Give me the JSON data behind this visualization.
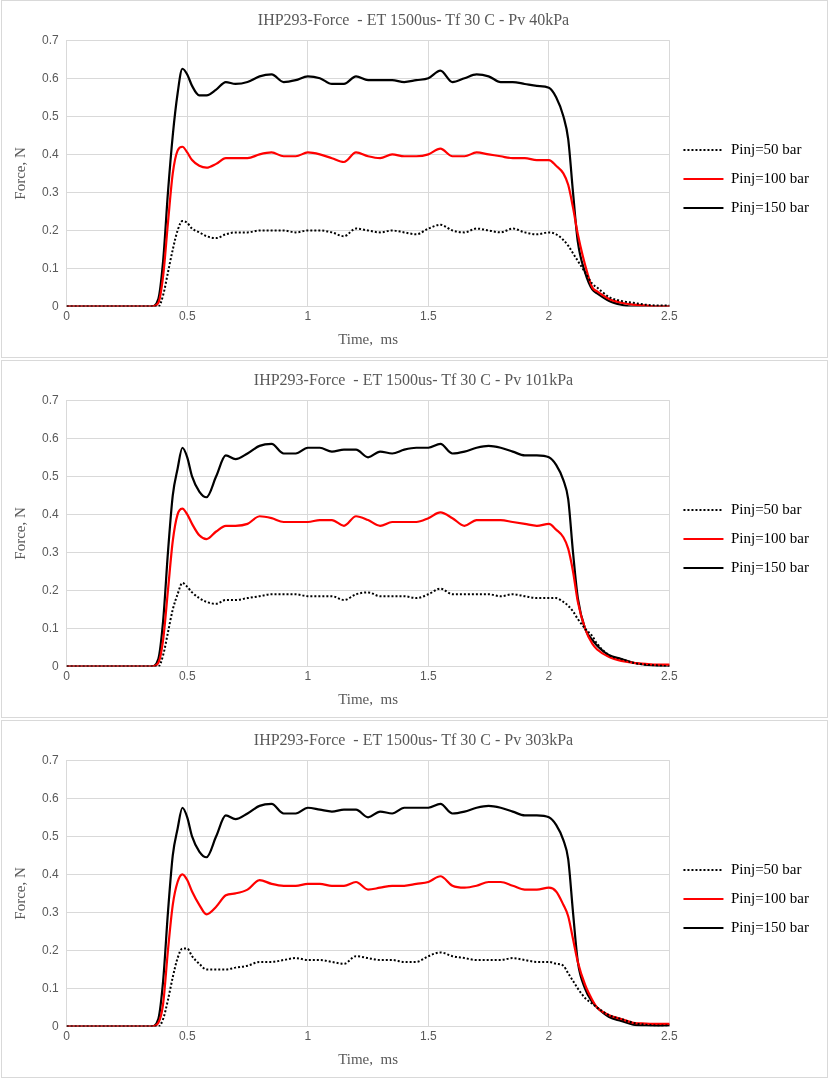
{
  "chart_data": [
    {
      "type": "line",
      "title": "IHP293-Force  - ET 1500us- Tf 30 C - Pv 40kPa",
      "xlabel": "Time,  ms",
      "ylabel": "Force, N",
      "xlim": [
        0,
        2.5
      ],
      "xticks": [
        0,
        0.5,
        1,
        1.5,
        2,
        2.5
      ],
      "ylim": [
        0,
        0.7
      ],
      "yticks": [
        0,
        0.1,
        0.2,
        0.3,
        0.4,
        0.5,
        0.6,
        0.7
      ],
      "grid": true,
      "legend": "right",
      "marker": "none",
      "x": [
        0,
        0.35,
        0.38,
        0.4,
        0.42,
        0.44,
        0.46,
        0.48,
        0.5,
        0.52,
        0.55,
        0.58,
        0.62,
        0.66,
        0.7,
        0.75,
        0.8,
        0.85,
        0.9,
        0.95,
        1.0,
        1.05,
        1.1,
        1.15,
        1.2,
        1.25,
        1.3,
        1.35,
        1.4,
        1.45,
        1.5,
        1.55,
        1.6,
        1.65,
        1.7,
        1.75,
        1.8,
        1.85,
        1.9,
        1.95,
        2.0,
        2.03,
        2.06,
        2.08,
        2.1,
        2.12,
        2.15,
        2.18,
        2.2,
        2.25,
        2.3,
        2.35,
        2.4,
        2.45,
        2.5
      ],
      "series": [
        {
          "name": "Pinj=50 bar",
          "color": "#000000",
          "line_style": "dotted",
          "values": [
            0,
            0,
            0,
            0.03,
            0.09,
            0.15,
            0.2,
            0.225,
            0.22,
            0.205,
            0.195,
            0.185,
            0.18,
            0.19,
            0.195,
            0.195,
            0.2,
            0.2,
            0.2,
            0.195,
            0.2,
            0.2,
            0.195,
            0.185,
            0.205,
            0.2,
            0.195,
            0.2,
            0.195,
            0.19,
            0.205,
            0.215,
            0.2,
            0.195,
            0.205,
            0.2,
            0.195,
            0.205,
            0.195,
            0.19,
            0.195,
            0.19,
            0.175,
            0.16,
            0.14,
            0.12,
            0.09,
            0.06,
            0.05,
            0.025,
            0.015,
            0.01,
            0.005,
            0.003,
            0.003
          ]
        },
        {
          "name": "Pinj=100 bar",
          "color": "#ff0000",
          "line_style": "solid",
          "values": [
            0,
            0,
            0.01,
            0.08,
            0.22,
            0.35,
            0.41,
            0.42,
            0.405,
            0.385,
            0.37,
            0.365,
            0.375,
            0.39,
            0.39,
            0.39,
            0.4,
            0.405,
            0.395,
            0.395,
            0.405,
            0.4,
            0.39,
            0.38,
            0.405,
            0.395,
            0.39,
            0.4,
            0.395,
            0.395,
            0.4,
            0.415,
            0.395,
            0.395,
            0.405,
            0.4,
            0.395,
            0.39,
            0.39,
            0.385,
            0.385,
            0.37,
            0.35,
            0.32,
            0.26,
            0.19,
            0.11,
            0.05,
            0.04,
            0.02,
            0.01,
            0.005,
            0.003,
            0,
            0
          ]
        },
        {
          "name": "Pinj=150 bar",
          "color": "#000000",
          "line_style": "solid",
          "values": [
            0,
            0,
            0.02,
            0.12,
            0.3,
            0.45,
            0.56,
            0.625,
            0.61,
            0.58,
            0.555,
            0.555,
            0.57,
            0.59,
            0.585,
            0.59,
            0.605,
            0.61,
            0.59,
            0.595,
            0.605,
            0.6,
            0.585,
            0.585,
            0.605,
            0.595,
            0.595,
            0.595,
            0.59,
            0.595,
            0.6,
            0.62,
            0.59,
            0.6,
            0.61,
            0.605,
            0.59,
            0.59,
            0.585,
            0.58,
            0.575,
            0.55,
            0.5,
            0.44,
            0.3,
            0.17,
            0.09,
            0.045,
            0.035,
            0.015,
            0.005,
            0,
            0,
            0,
            0
          ]
        }
      ]
    },
    {
      "type": "line",
      "title": "IHP293-Force  - ET 1500us- Tf 30 C - Pv 101kPa",
      "xlabel": "Time,  ms",
      "ylabel": "Force, N",
      "xlim": [
        0,
        2.5
      ],
      "xticks": [
        0,
        0.5,
        1,
        1.5,
        2,
        2.5
      ],
      "ylim": [
        0,
        0.7
      ],
      "yticks": [
        0,
        0.1,
        0.2,
        0.3,
        0.4,
        0.5,
        0.6,
        0.7
      ],
      "grid": true,
      "legend": "right",
      "marker": "none",
      "x": [
        0,
        0.35,
        0.38,
        0.4,
        0.42,
        0.44,
        0.46,
        0.48,
        0.5,
        0.52,
        0.55,
        0.58,
        0.62,
        0.66,
        0.7,
        0.75,
        0.8,
        0.85,
        0.9,
        0.95,
        1.0,
        1.05,
        1.1,
        1.15,
        1.2,
        1.25,
        1.3,
        1.35,
        1.4,
        1.45,
        1.5,
        1.55,
        1.6,
        1.65,
        1.7,
        1.75,
        1.8,
        1.85,
        1.9,
        1.95,
        2.0,
        2.03,
        2.06,
        2.08,
        2.1,
        2.12,
        2.15,
        2.18,
        2.2,
        2.25,
        2.3,
        2.35,
        2.4,
        2.45,
        2.5
      ],
      "series": [
        {
          "name": "Pinj=50 bar",
          "color": "#000000",
          "line_style": "dotted",
          "values": [
            0,
            0,
            0,
            0.03,
            0.09,
            0.15,
            0.19,
            0.22,
            0.21,
            0.195,
            0.18,
            0.17,
            0.165,
            0.175,
            0.175,
            0.18,
            0.185,
            0.19,
            0.19,
            0.19,
            0.185,
            0.185,
            0.185,
            0.175,
            0.19,
            0.195,
            0.185,
            0.185,
            0.185,
            0.18,
            0.19,
            0.205,
            0.19,
            0.19,
            0.19,
            0.19,
            0.185,
            0.19,
            0.185,
            0.18,
            0.18,
            0.18,
            0.17,
            0.16,
            0.145,
            0.125,
            0.1,
            0.08,
            0.06,
            0.03,
            0.02,
            0.01,
            0.005,
            0.003,
            0
          ]
        },
        {
          "name": "Pinj=100 bar",
          "color": "#ff0000",
          "line_style": "solid",
          "values": [
            0,
            0,
            0.01,
            0.07,
            0.2,
            0.33,
            0.4,
            0.415,
            0.4,
            0.375,
            0.345,
            0.335,
            0.355,
            0.37,
            0.37,
            0.375,
            0.395,
            0.39,
            0.38,
            0.38,
            0.38,
            0.385,
            0.385,
            0.37,
            0.395,
            0.385,
            0.37,
            0.38,
            0.38,
            0.38,
            0.39,
            0.405,
            0.39,
            0.37,
            0.385,
            0.385,
            0.385,
            0.38,
            0.375,
            0.37,
            0.375,
            0.36,
            0.34,
            0.31,
            0.25,
            0.17,
            0.1,
            0.06,
            0.045,
            0.025,
            0.015,
            0.01,
            0.007,
            0.005,
            0.005
          ]
        },
        {
          "name": "Pinj=150 bar",
          "color": "#000000",
          "line_style": "solid",
          "values": [
            0,
            0,
            0.02,
            0.12,
            0.3,
            0.45,
            0.52,
            0.575,
            0.55,
            0.5,
            0.46,
            0.445,
            0.5,
            0.555,
            0.545,
            0.56,
            0.58,
            0.585,
            0.56,
            0.56,
            0.575,
            0.575,
            0.565,
            0.57,
            0.57,
            0.55,
            0.565,
            0.56,
            0.57,
            0.575,
            0.575,
            0.585,
            0.56,
            0.565,
            0.575,
            0.58,
            0.575,
            0.565,
            0.555,
            0.555,
            0.55,
            0.53,
            0.49,
            0.44,
            0.3,
            0.18,
            0.1,
            0.07,
            0.055,
            0.03,
            0.02,
            0.01,
            0.005,
            0.002,
            0
          ]
        }
      ]
    },
    {
      "type": "line",
      "title": "IHP293-Force  - ET 1500us- Tf 30 C - Pv 303kPa",
      "xlabel": "Time,  ms",
      "ylabel": "Force, N",
      "xlim": [
        0,
        2.5
      ],
      "xticks": [
        0,
        0.5,
        1,
        1.5,
        2,
        2.5
      ],
      "ylim": [
        0,
        0.7
      ],
      "yticks": [
        0,
        0.1,
        0.2,
        0.3,
        0.4,
        0.5,
        0.6,
        0.7
      ],
      "grid": true,
      "legend": "right",
      "marker": "none",
      "x": [
        0,
        0.35,
        0.38,
        0.4,
        0.42,
        0.44,
        0.46,
        0.48,
        0.5,
        0.52,
        0.55,
        0.58,
        0.62,
        0.66,
        0.7,
        0.75,
        0.8,
        0.85,
        0.9,
        0.95,
        1.0,
        1.05,
        1.1,
        1.15,
        1.2,
        1.25,
        1.3,
        1.35,
        1.4,
        1.45,
        1.5,
        1.55,
        1.6,
        1.65,
        1.7,
        1.75,
        1.8,
        1.85,
        1.9,
        1.95,
        2.0,
        2.03,
        2.06,
        2.08,
        2.1,
        2.12,
        2.15,
        2.18,
        2.2,
        2.25,
        2.3,
        2.35,
        2.4,
        2.45,
        2.5
      ],
      "series": [
        {
          "name": "Pinj=50 bar",
          "color": "#000000",
          "line_style": "dotted",
          "values": [
            0,
            0,
            0,
            0.02,
            0.07,
            0.13,
            0.18,
            0.205,
            0.205,
            0.185,
            0.165,
            0.15,
            0.15,
            0.15,
            0.155,
            0.16,
            0.17,
            0.17,
            0.175,
            0.18,
            0.175,
            0.175,
            0.17,
            0.165,
            0.185,
            0.18,
            0.175,
            0.175,
            0.17,
            0.17,
            0.185,
            0.195,
            0.185,
            0.18,
            0.175,
            0.175,
            0.175,
            0.18,
            0.175,
            0.17,
            0.17,
            0.165,
            0.16,
            0.14,
            0.12,
            0.1,
            0.075,
            0.06,
            0.05,
            0.03,
            0.02,
            0.01,
            0.005,
            0.003,
            0.003
          ]
        },
        {
          "name": "Pinj=100 bar",
          "color": "#ff0000",
          "line_style": "solid",
          "values": [
            0,
            0,
            0.01,
            0.06,
            0.2,
            0.32,
            0.38,
            0.4,
            0.385,
            0.355,
            0.32,
            0.295,
            0.315,
            0.345,
            0.35,
            0.36,
            0.385,
            0.375,
            0.37,
            0.37,
            0.375,
            0.375,
            0.37,
            0.37,
            0.38,
            0.36,
            0.365,
            0.37,
            0.37,
            0.375,
            0.38,
            0.395,
            0.37,
            0.365,
            0.37,
            0.38,
            0.38,
            0.37,
            0.36,
            0.36,
            0.365,
            0.355,
            0.32,
            0.29,
            0.23,
            0.17,
            0.11,
            0.07,
            0.05,
            0.03,
            0.02,
            0.01,
            0.008,
            0.007,
            0.007
          ]
        },
        {
          "name": "Pinj=150 bar",
          "color": "#000000",
          "line_style": "solid",
          "values": [
            0,
            0,
            0.02,
            0.12,
            0.3,
            0.45,
            0.52,
            0.575,
            0.55,
            0.5,
            0.46,
            0.445,
            0.5,
            0.555,
            0.545,
            0.56,
            0.58,
            0.585,
            0.56,
            0.56,
            0.575,
            0.57,
            0.565,
            0.57,
            0.57,
            0.55,
            0.565,
            0.56,
            0.575,
            0.575,
            0.575,
            0.585,
            0.56,
            0.565,
            0.575,
            0.58,
            0.575,
            0.565,
            0.555,
            0.555,
            0.55,
            0.53,
            0.49,
            0.44,
            0.3,
            0.17,
            0.1,
            0.065,
            0.05,
            0.025,
            0.015,
            0.005,
            0.003,
            0.002,
            0.003
          ]
        }
      ]
    }
  ]
}
